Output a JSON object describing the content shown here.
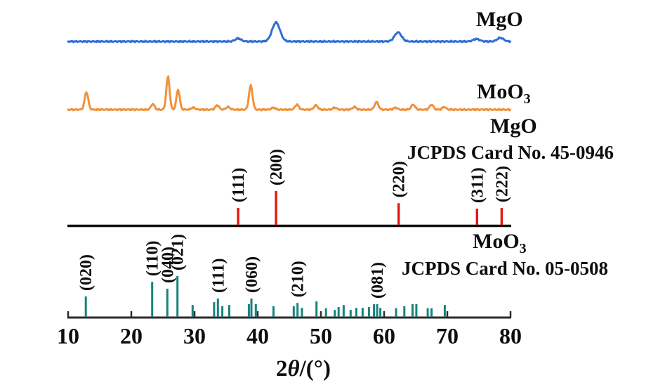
{
  "chart_data": {
    "type": "line+stem",
    "title": "",
    "x_axis": {
      "label_prefix": "2",
      "label_theta": "θ",
      "label_suffix": "/(°)",
      "min": 10,
      "max": 80,
      "ticks": [
        10,
        20,
        30,
        40,
        50,
        60,
        70,
        80
      ]
    },
    "grid": false,
    "traces": [
      {
        "id": "mgo-experimental",
        "type": "line",
        "label": "MgO",
        "label_sub": "",
        "color": "#2f6ed6",
        "peaks": [
          {
            "two_theta": 36.9,
            "intensity": 16,
            "sigma": 0.45
          },
          {
            "two_theta": 42.9,
            "intensity": 100,
            "sigma": 0.62
          },
          {
            "two_theta": 62.2,
            "intensity": 48,
            "sigma": 0.55
          },
          {
            "two_theta": 74.6,
            "intensity": 13,
            "sigma": 0.5
          },
          {
            "two_theta": 78.4,
            "intensity": 19,
            "sigma": 0.5
          }
        ]
      },
      {
        "id": "moo3-experimental",
        "type": "line",
        "label": "MoO",
        "label_sub": "3",
        "color": "#f0923c",
        "peaks": [
          {
            "two_theta": 12.9,
            "intensity": 53,
            "sigma": 0.28
          },
          {
            "two_theta": 23.4,
            "intensity": 17,
            "sigma": 0.28
          },
          {
            "two_theta": 25.8,
            "intensity": 100,
            "sigma": 0.26
          },
          {
            "two_theta": 27.4,
            "intensity": 60,
            "sigma": 0.26
          },
          {
            "two_theta": 29.8,
            "intensity": 6,
            "sigma": 0.3
          },
          {
            "two_theta": 33.6,
            "intensity": 13,
            "sigma": 0.3
          },
          {
            "two_theta": 35.3,
            "intensity": 8,
            "sigma": 0.3
          },
          {
            "two_theta": 38.9,
            "intensity": 73,
            "sigma": 0.28
          },
          {
            "two_theta": 42.5,
            "intensity": 6,
            "sigma": 0.3
          },
          {
            "two_theta": 46.2,
            "intensity": 15,
            "sigma": 0.3
          },
          {
            "two_theta": 49.2,
            "intensity": 13,
            "sigma": 0.3
          },
          {
            "two_theta": 52.2,
            "intensity": 6,
            "sigma": 0.3
          },
          {
            "two_theta": 55.3,
            "intensity": 8,
            "sigma": 0.3
          },
          {
            "two_theta": 58.8,
            "intensity": 23,
            "sigma": 0.3
          },
          {
            "two_theta": 61.8,
            "intensity": 6,
            "sigma": 0.3
          },
          {
            "two_theta": 64.6,
            "intensity": 15,
            "sigma": 0.3
          },
          {
            "two_theta": 67.5,
            "intensity": 15,
            "sigma": 0.3
          },
          {
            "two_theta": 69.5,
            "intensity": 8,
            "sigma": 0.3
          }
        ]
      }
    ],
    "references": [
      {
        "id": "mgo-reference",
        "type": "stem",
        "title": "MgO",
        "title_sub": "",
        "card": "JCPDS Card No. 45-0946",
        "color": "#e8150f",
        "sticks": [
          {
            "two_theta": 36.9,
            "intensity": 50,
            "hkl": "(111)"
          },
          {
            "two_theta": 42.9,
            "intensity": 100,
            "hkl": "(200)"
          },
          {
            "two_theta": 62.3,
            "intensity": 64,
            "hkl": "(220)"
          },
          {
            "two_theta": 74.7,
            "intensity": 48,
            "hkl": "(311)"
          },
          {
            "two_theta": 78.6,
            "intensity": 50,
            "hkl": "(222)"
          }
        ]
      },
      {
        "id": "moo3-reference",
        "type": "stem",
        "title": "MoO",
        "title_sub": "3",
        "card": "JCPDS Card No. 05-0508",
        "color": "#17827c",
        "sticks": [
          {
            "two_theta": 12.8,
            "intensity": 50,
            "hkl": "(020)"
          },
          {
            "two_theta": 23.3,
            "intensity": 86,
            "hkl": "(110)"
          },
          {
            "two_theta": 25.7,
            "intensity": 69,
            "hkl": "(040)"
          },
          {
            "two_theta": 27.3,
            "intensity": 100,
            "hkl": "(021)"
          },
          {
            "two_theta": 29.7,
            "intensity": 29,
            "hkl": ""
          },
          {
            "two_theta": 33.1,
            "intensity": 36,
            "hkl": ""
          },
          {
            "two_theta": 33.7,
            "intensity": 45,
            "hkl": "(111)"
          },
          {
            "two_theta": 34.4,
            "intensity": 26,
            "hkl": ""
          },
          {
            "two_theta": 35.5,
            "intensity": 29,
            "hkl": ""
          },
          {
            "two_theta": 38.6,
            "intensity": 31,
            "hkl": ""
          },
          {
            "two_theta": 39.0,
            "intensity": 45,
            "hkl": "(060)"
          },
          {
            "two_theta": 39.7,
            "intensity": 31,
            "hkl": ""
          },
          {
            "two_theta": 42.5,
            "intensity": 26,
            "hkl": ""
          },
          {
            "two_theta": 45.7,
            "intensity": 26,
            "hkl": ""
          },
          {
            "two_theta": 46.3,
            "intensity": 34,
            "hkl": "(210)"
          },
          {
            "two_theta": 47.0,
            "intensity": 22,
            "hkl": ""
          },
          {
            "two_theta": 49.3,
            "intensity": 38,
            "hkl": ""
          },
          {
            "two_theta": 50.8,
            "intensity": 21,
            "hkl": ""
          },
          {
            "two_theta": 52.2,
            "intensity": 17,
            "hkl": ""
          },
          {
            "two_theta": 52.8,
            "intensity": 24,
            "hkl": ""
          },
          {
            "two_theta": 53.6,
            "intensity": 29,
            "hkl": ""
          },
          {
            "two_theta": 54.7,
            "intensity": 17,
            "hkl": ""
          },
          {
            "two_theta": 55.6,
            "intensity": 22,
            "hkl": ""
          },
          {
            "two_theta": 56.6,
            "intensity": 22,
            "hkl": ""
          },
          {
            "two_theta": 57.6,
            "intensity": 24,
            "hkl": ""
          },
          {
            "two_theta": 58.4,
            "intensity": 31,
            "hkl": ""
          },
          {
            "two_theta": 58.9,
            "intensity": 31,
            "hkl": "(081)"
          },
          {
            "two_theta": 59.4,
            "intensity": 22,
            "hkl": ""
          },
          {
            "two_theta": 61.9,
            "intensity": 21,
            "hkl": ""
          },
          {
            "two_theta": 63.2,
            "intensity": 26,
            "hkl": ""
          },
          {
            "two_theta": 64.5,
            "intensity": 31,
            "hkl": ""
          },
          {
            "two_theta": 65.1,
            "intensity": 31,
            "hkl": ""
          },
          {
            "two_theta": 66.9,
            "intensity": 21,
            "hkl": ""
          },
          {
            "two_theta": 67.5,
            "intensity": 21,
            "hkl": ""
          },
          {
            "two_theta": 69.6,
            "intensity": 29,
            "hkl": ""
          }
        ]
      }
    ],
    "colors": {
      "axis": "#2b2b2b",
      "reference_baseline": "#111111",
      "text": "#0d0d0d"
    }
  }
}
